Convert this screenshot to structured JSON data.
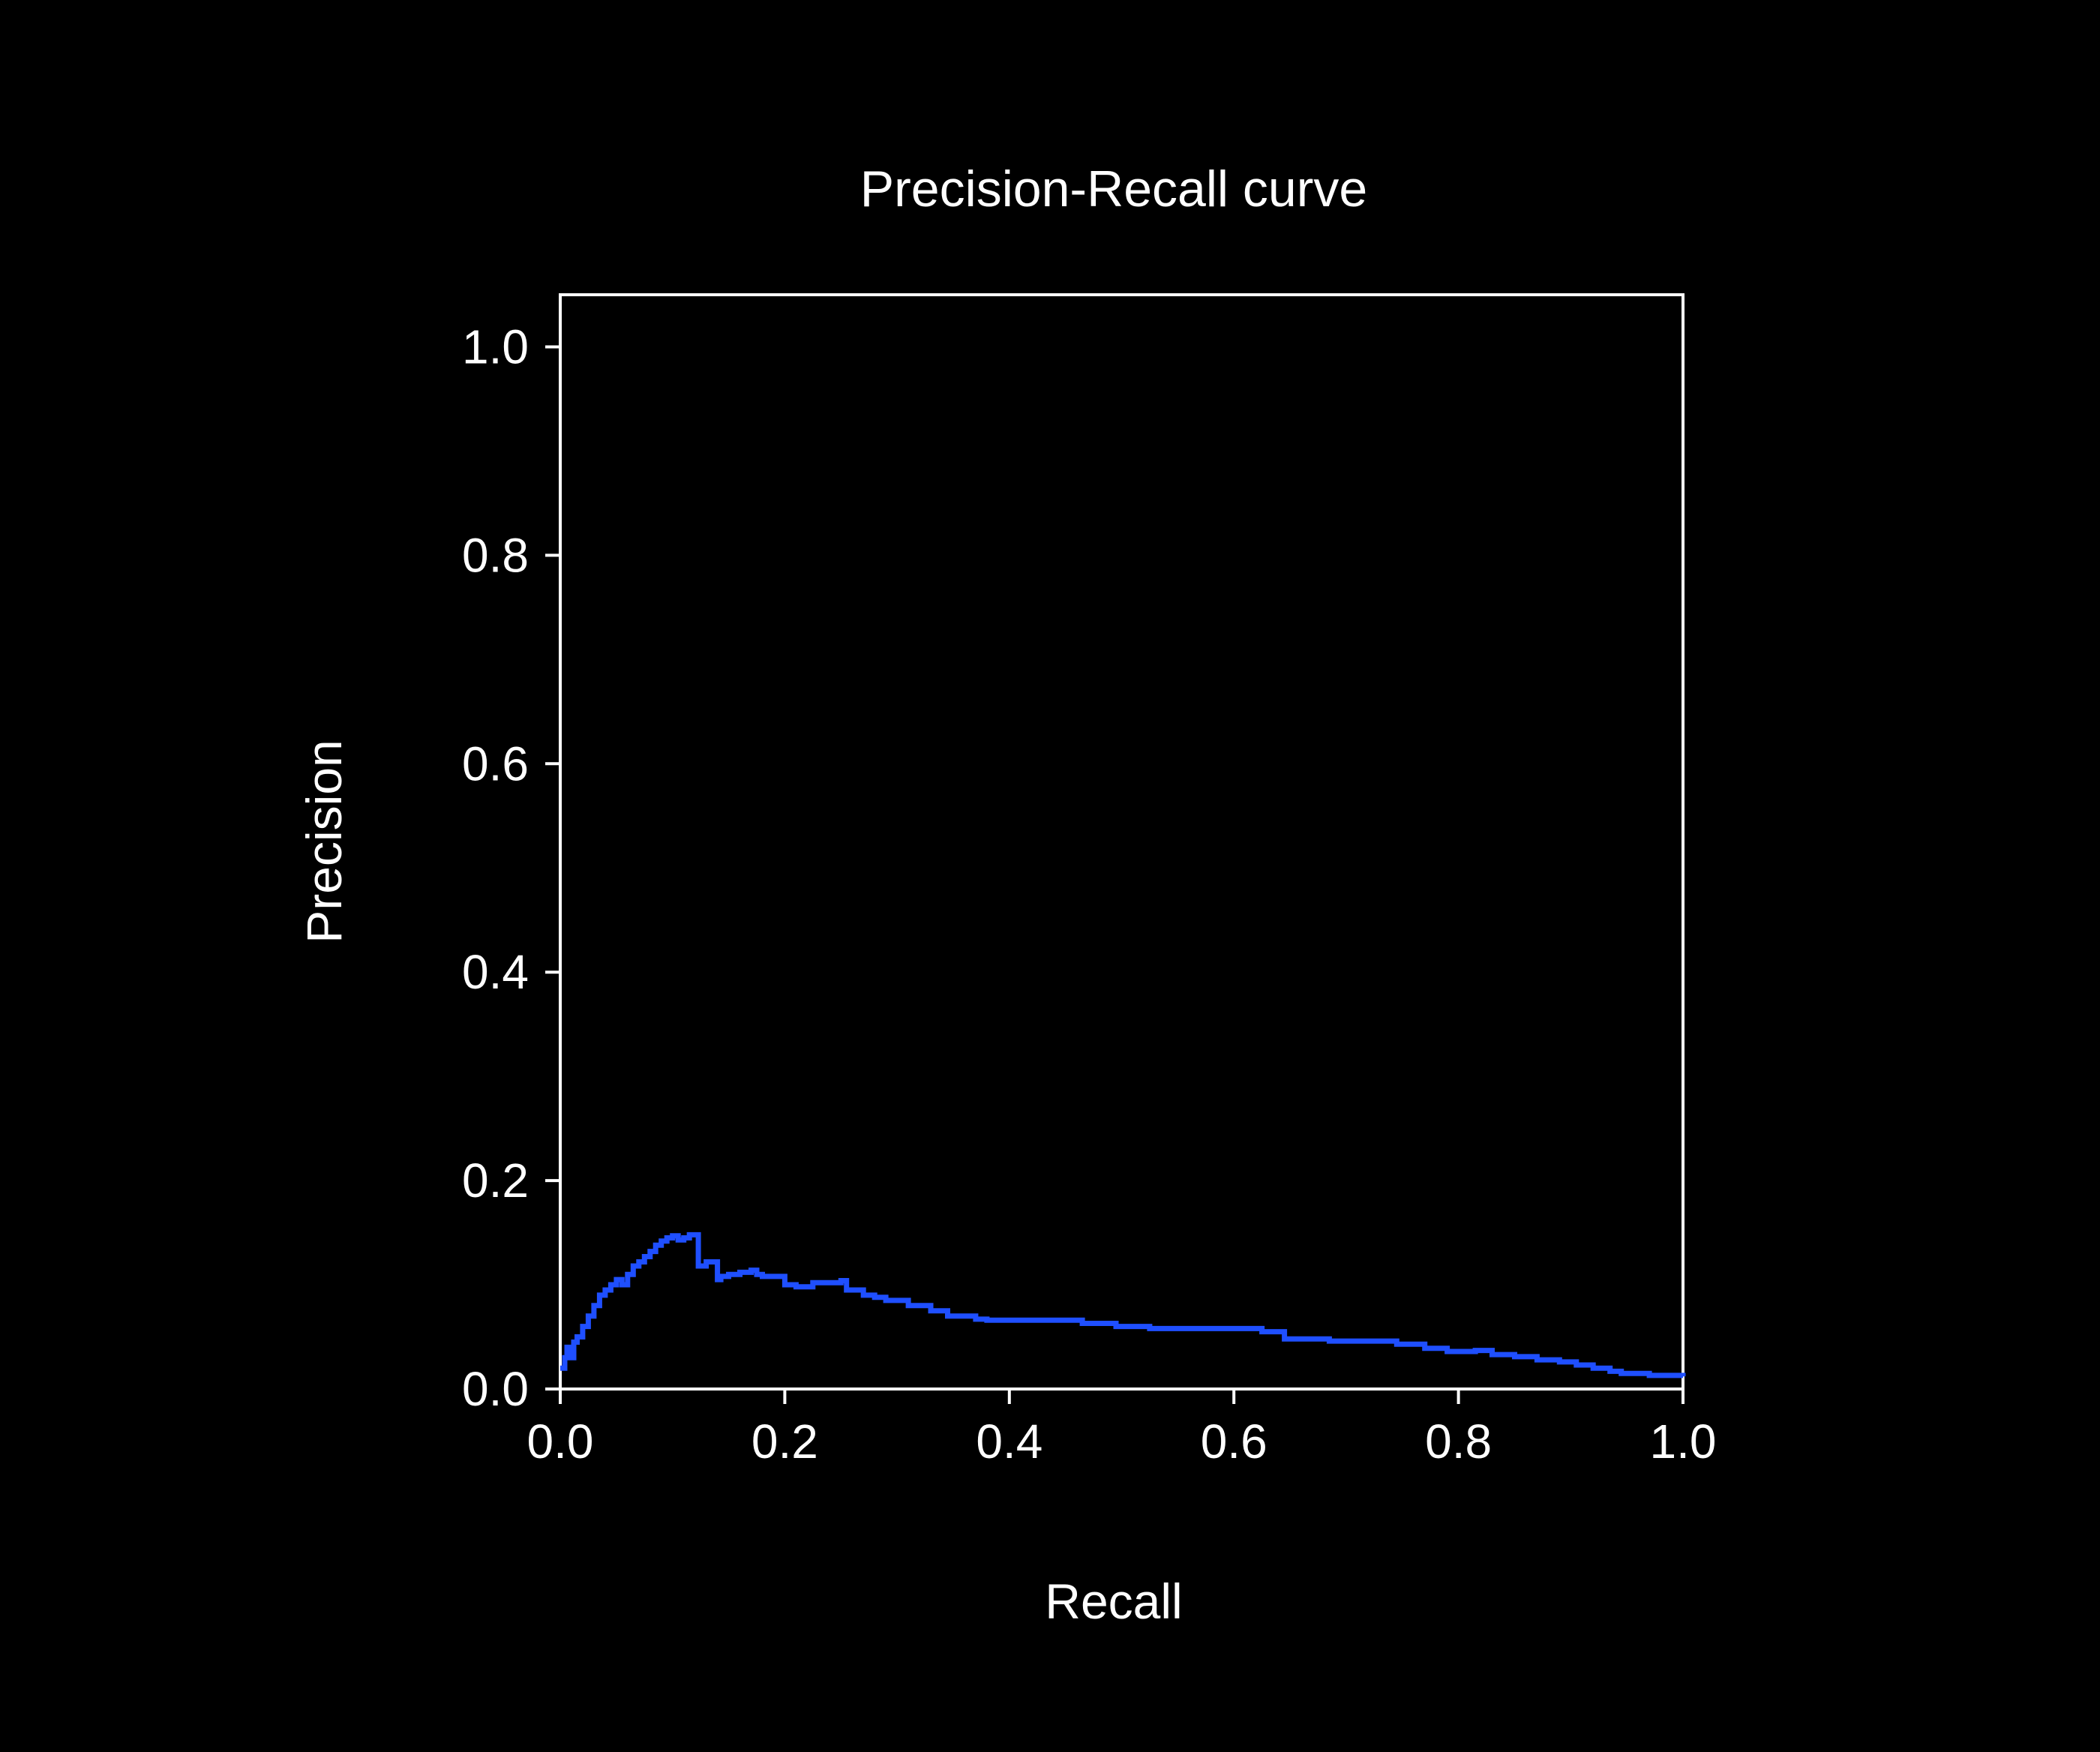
{
  "chart_data": {
    "type": "line",
    "title": "Precision-Recall curve",
    "xlabel": "Recall",
    "ylabel": "Precision",
    "xlim": [
      0,
      1
    ],
    "ylim": [
      0,
      1.05
    ],
    "xticks": [
      "0.0",
      "0.2",
      "0.4",
      "0.6",
      "0.8",
      "1.0"
    ],
    "yticks": [
      "0.0",
      "0.2",
      "0.4",
      "0.6",
      "0.8",
      "1.0"
    ],
    "grid": false,
    "legend": "none",
    "line_style": "step",
    "colors": {
      "background": "#000000",
      "axes": "#ffffff",
      "text": "#ffffff",
      "series": "#1f4fff"
    },
    "series": [
      {
        "x": [
          0.0,
          0.004,
          0.006,
          0.01,
          0.012,
          0.015,
          0.02,
          0.025,
          0.03,
          0.035,
          0.04,
          0.045,
          0.05,
          0.055,
          0.06,
          0.065,
          0.07,
          0.075,
          0.08,
          0.085,
          0.09,
          0.095,
          0.1,
          0.105,
          0.11,
          0.115,
          0.12,
          0.123,
          0.13,
          0.14,
          0.143,
          0.15,
          0.16,
          0.17,
          0.175,
          0.18,
          0.2,
          0.21,
          0.225,
          0.25,
          0.255,
          0.27,
          0.28,
          0.29,
          0.31,
          0.33,
          0.345,
          0.37,
          0.38,
          0.465,
          0.495,
          0.525,
          0.625,
          0.645,
          0.685,
          0.745,
          0.77,
          0.79,
          0.815,
          0.83,
          0.85,
          0.87,
          0.89,
          0.905,
          0.92,
          0.935,
          0.945,
          0.97,
          1.0
        ],
        "y": [
          0.02,
          0.03,
          0.04,
          0.03,
          0.045,
          0.05,
          0.06,
          0.07,
          0.08,
          0.09,
          0.095,
          0.1,
          0.105,
          0.1,
          0.11,
          0.118,
          0.122,
          0.127,
          0.132,
          0.138,
          0.142,
          0.145,
          0.147,
          0.143,
          0.145,
          0.148,
          0.148,
          0.118,
          0.122,
          0.105,
          0.108,
          0.11,
          0.112,
          0.114,
          0.11,
          0.108,
          0.1,
          0.098,
          0.102,
          0.104,
          0.095,
          0.09,
          0.088,
          0.085,
          0.08,
          0.075,
          0.07,
          0.067,
          0.066,
          0.063,
          0.06,
          0.058,
          0.055,
          0.048,
          0.046,
          0.043,
          0.039,
          0.036,
          0.037,
          0.033,
          0.031,
          0.028,
          0.026,
          0.023,
          0.02,
          0.017,
          0.015,
          0.013,
          0.012
        ]
      }
    ]
  }
}
